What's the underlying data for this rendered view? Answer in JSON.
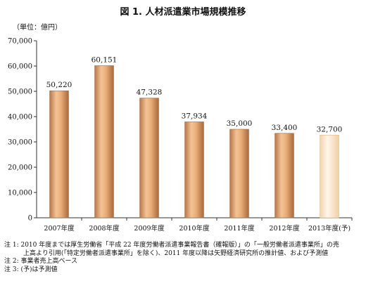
{
  "chart_data": {
    "type": "bar",
    "title": "図 1. 人材派遣業市場規模推移",
    "unit_label": "（単位：億円）",
    "categories": [
      "2007年度",
      "2008年度",
      "2009年度",
      "2010年度",
      "2011年度",
      "2012年度",
      "2013年度(予)"
    ],
    "values": [
      50220,
      60151,
      47328,
      37934,
      35000,
      33400,
      32700
    ],
    "value_labels": [
      "50,220",
      "60,151",
      "47,328",
      "37,934",
      "35,000",
      "33,400",
      "32,700"
    ],
    "ylim": [
      0,
      70000
    ],
    "yticks": [
      0,
      10000,
      20000,
      30000,
      40000,
      50000,
      60000,
      70000
    ],
    "ytick_labels": [
      "0",
      "10,000",
      "20,000",
      "30,000",
      "40,000",
      "50,000",
      "60,000",
      "70,000"
    ],
    "projected_index": 6,
    "colors": {
      "bar": "#d9a06a",
      "projected_bar": "#fcebd4",
      "bar_stroke": "#9c6b3e"
    },
    "grid": false,
    "legend": "none"
  },
  "notes": {
    "note1_a": "注 1:  2010 年度までは厚生労働省「平成 22 年度労働者派遣事業報告書（確報版）」の「一般労働者派遣事業所」の売",
    "note1_b": "上高より引用(「特定労働者派遣事業所」を除く)、2011 年度以降は矢野経済研究所の推計値、および予測値",
    "note2": "注 2:  事業者売上高ベース",
    "note3": "注 3:  (予)は予測値"
  }
}
